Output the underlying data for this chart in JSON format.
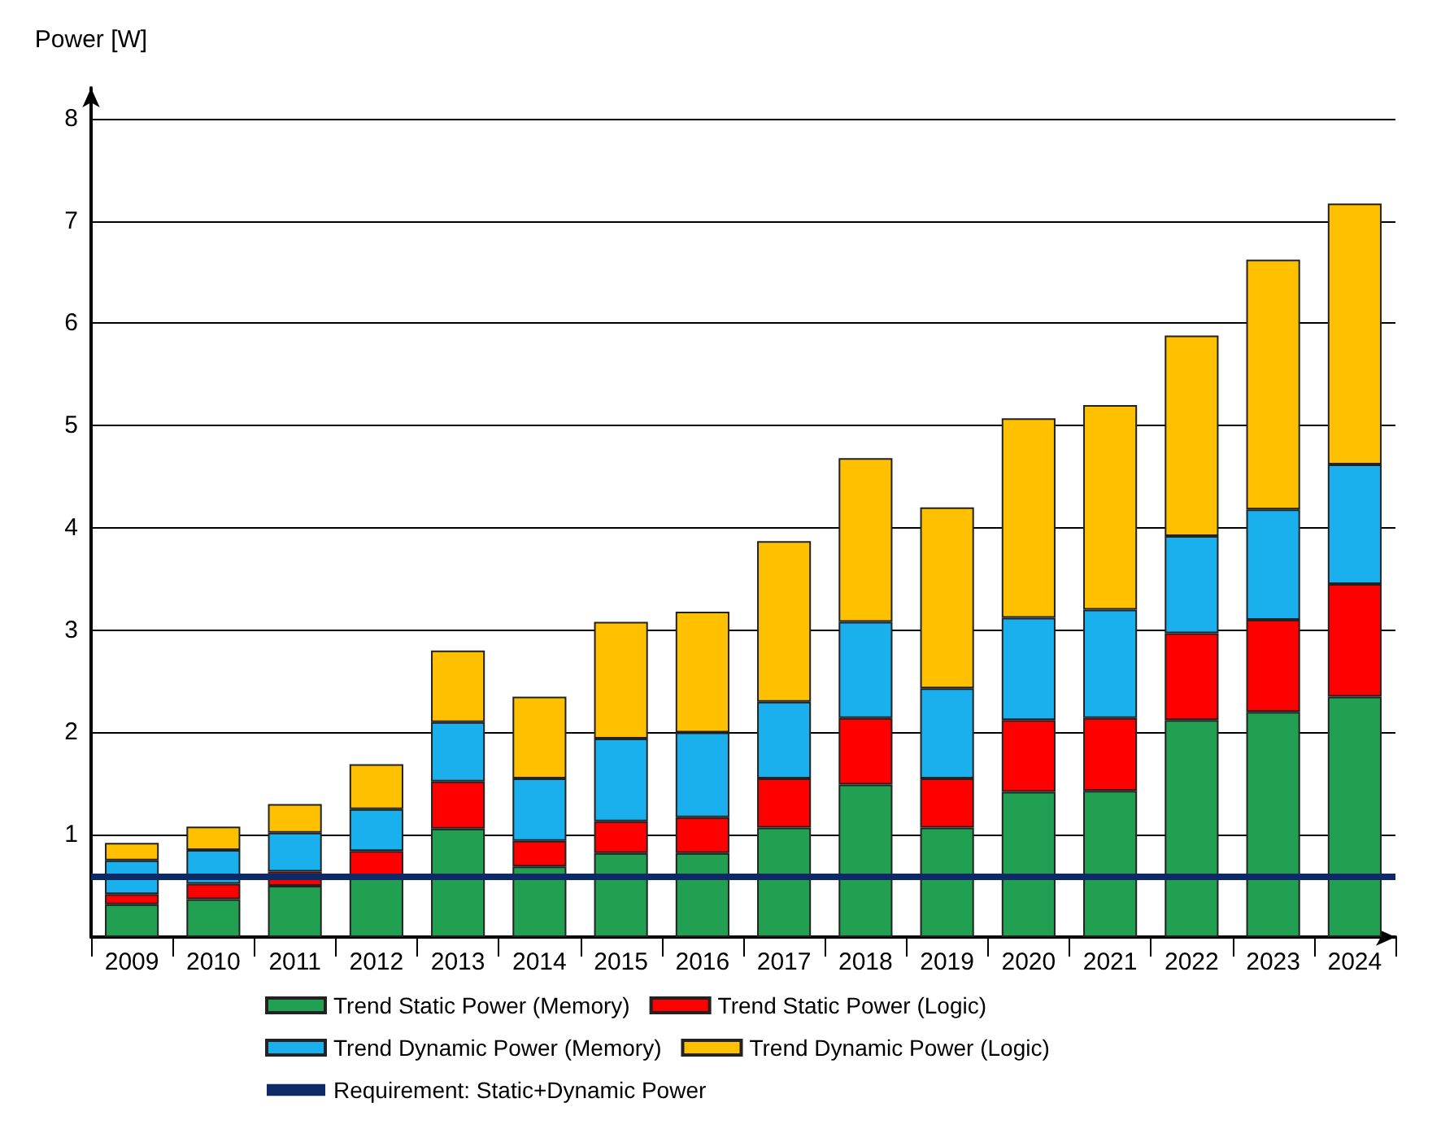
{
  "chart_data": {
    "type": "bar",
    "stacked": true,
    "ylabel": "Power [W]",
    "categories": [
      "2009",
      "2010",
      "2011",
      "2012",
      "2013",
      "2014",
      "2015",
      "2016",
      "2017",
      "2018",
      "2019",
      "2020",
      "2021",
      "2022",
      "2023",
      "2024"
    ],
    "series": [
      {
        "name": "Trend Static Power (Memory)",
        "color": "#22a052",
        "values": [
          0.32,
          0.37,
          0.5,
          0.58,
          1.06,
          0.69,
          0.82,
          0.82,
          1.07,
          1.49,
          1.07,
          1.42,
          1.43,
          2.12,
          2.2,
          2.35
        ]
      },
      {
        "name": "Trend Static Power (Logic)",
        "color": "#ff0000",
        "values": [
          0.1,
          0.15,
          0.14,
          0.26,
          0.46,
          0.25,
          0.31,
          0.35,
          0.48,
          0.65,
          0.48,
          0.7,
          0.71,
          0.85,
          0.9,
          1.1
        ]
      },
      {
        "name": "Trend Dynamic Power (Memory)",
        "color": "#1ab0ee",
        "values": [
          0.33,
          0.33,
          0.38,
          0.41,
          0.58,
          0.61,
          0.81,
          0.83,
          0.75,
          0.94,
          0.88,
          1.0,
          1.06,
          0.95,
          1.08,
          1.17
        ]
      },
      {
        "name": "Trend Dynamic Power (Logic)",
        "color": "#ffc000",
        "values": [
          0.17,
          0.23,
          0.28,
          0.44,
          0.7,
          0.8,
          1.14,
          1.18,
          1.57,
          1.6,
          1.77,
          1.95,
          2.0,
          1.96,
          2.44,
          2.55
        ]
      }
    ],
    "ref_lines": [
      {
        "axis": "y",
        "value": 0.6,
        "label": "Requirement: Static+Dynamic Power",
        "color": "#0d2a66"
      }
    ],
    "ylim": [
      0,
      8.3
    ],
    "yticks": [
      1,
      2,
      3,
      4,
      5,
      6,
      7,
      8
    ],
    "grid": "y",
    "legend": "bottom"
  }
}
